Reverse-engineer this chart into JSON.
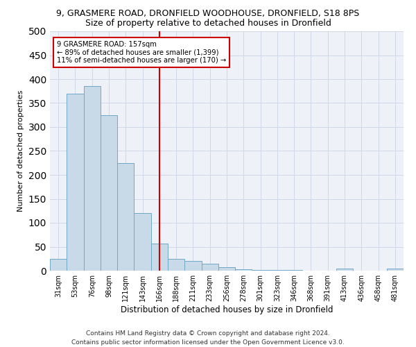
{
  "title1": "9, GRASMERE ROAD, DRONFIELD WOODHOUSE, DRONFIELD, S18 8PS",
  "title2": "Size of property relative to detached houses in Dronfield",
  "xlabel": "Distribution of detached houses by size in Dronfield",
  "ylabel": "Number of detached properties",
  "categories": [
    "31sqm",
    "53sqm",
    "76sqm",
    "98sqm",
    "121sqm",
    "143sqm",
    "166sqm",
    "188sqm",
    "211sqm",
    "233sqm",
    "256sqm",
    "278sqm",
    "301sqm",
    "323sqm",
    "346sqm",
    "368sqm",
    "391sqm",
    "413sqm",
    "436sqm",
    "458sqm",
    "481sqm"
  ],
  "values": [
    25,
    370,
    385,
    325,
    225,
    120,
    57,
    25,
    20,
    15,
    7,
    3,
    2,
    1,
    1,
    0,
    0,
    4,
    0,
    0,
    4
  ],
  "bar_color": "#c8d9e8",
  "bar_edgecolor": "#6fa8c8",
  "vline_x": 6,
  "vline_color": "#cc0000",
  "annotation_text": "9 GRASMERE ROAD: 157sqm\n← 89% of detached houses are smaller (1,399)\n11% of semi-detached houses are larger (170) →",
  "annotation_box_color": "#cc0000",
  "ylim": [
    0,
    500
  ],
  "yticks": [
    0,
    50,
    100,
    150,
    200,
    250,
    300,
    350,
    400,
    450,
    500
  ],
  "grid_color": "#d0d8e8",
  "bg_color": "#eef2f8",
  "footer": "Contains HM Land Registry data © Crown copyright and database right 2024.\nContains public sector information licensed under the Open Government Licence v3.0.",
  "title1_fontsize": 9,
  "title2_fontsize": 9,
  "xlabel_fontsize": 8.5,
  "ylabel_fontsize": 8,
  "footer_fontsize": 6.5,
  "tick_fontsize": 7,
  "ytick_fontsize": 7.5
}
